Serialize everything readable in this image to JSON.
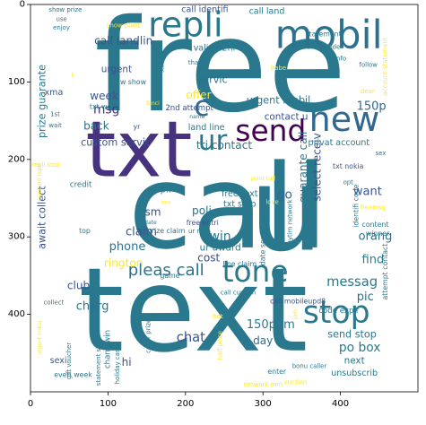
{
  "chart_data": {
    "type": "wordcloud",
    "xlim": [
      0,
      500
    ],
    "ylim": [
      500,
      0
    ],
    "x_ticks": [
      0,
      100,
      200,
      300,
      400
    ],
    "y_ticks": [
      0,
      100,
      200,
      300,
      400
    ],
    "grid": false,
    "colormap": "viridis",
    "words": [
      {
        "text": "call",
        "x": 255,
        "y": 262,
        "size": 150,
        "rotate": 0,
        "color": "#2a788e"
      },
      {
        "text": "free",
        "x": 245,
        "y": 80,
        "size": 165,
        "rotate": 0,
        "color": "#2a788e"
      },
      {
        "text": "text",
        "x": 210,
        "y": 395,
        "size": 150,
        "rotate": 0,
        "color": "#2a788e"
      },
      {
        "text": "txt",
        "x": 140,
        "y": 188,
        "size": 100,
        "rotate": 0,
        "color": "#46327e"
      },
      {
        "text": "u",
        "x": 330,
        "y": 265,
        "size": 150,
        "rotate": 0,
        "color": "#2a788e"
      },
      {
        "text": "mobil",
        "x": 385,
        "y": 40,
        "size": 50,
        "rotate": 0,
        "color": "#2c728e"
      },
      {
        "text": "repli",
        "x": 200,
        "y": 26,
        "size": 44,
        "rotate": 0,
        "color": "#2a788e"
      },
      {
        "text": "send",
        "x": 310,
        "y": 163,
        "size": 38,
        "rotate": 0,
        "color": "#440154"
      },
      {
        "text": "new",
        "x": 405,
        "y": 148,
        "size": 44,
        "rotate": 0,
        "color": "#31688e"
      },
      {
        "text": "tone",
        "x": 290,
        "y": 345,
        "size": 38,
        "rotate": 0,
        "color": "#2a788e"
      },
      {
        "text": "stop",
        "x": 395,
        "y": 398,
        "size": 40,
        "rotate": 0,
        "color": "#2a788e"
      },
      {
        "text": "ur",
        "x": 235,
        "y": 176,
        "size": 36,
        "rotate": 0,
        "color": "#2a788e"
      },
      {
        "text": "c",
        "x": 221,
        "y": 132,
        "size": 36,
        "rotate": 0,
        "color": "#31688e"
      },
      {
        "text": "pleas call",
        "x": 175,
        "y": 343,
        "size": 21,
        "rotate": 0,
        "color": "#2c728e"
      },
      {
        "text": "call landlin",
        "x": 120,
        "y": 47,
        "size": 14,
        "rotate": 0,
        "color": "#39568c"
      },
      {
        "text": "urgent",
        "x": 111,
        "y": 84,
        "size": 12,
        "rotate": 0,
        "color": "#3b528b"
      },
      {
        "text": "week",
        "x": 95,
        "y": 118,
        "size": 14,
        "rotate": 0,
        "color": "#39568c"
      },
      {
        "text": "msg",
        "x": 98,
        "y": 136,
        "size": 16,
        "rotate": 0,
        "color": "#46327e"
      },
      {
        "text": "back",
        "x": 85,
        "y": 157,
        "size": 14,
        "rotate": 0,
        "color": "#2d708e"
      },
      {
        "text": "custom servic",
        "x": 110,
        "y": 178,
        "size": 13,
        "rotate": 0,
        "color": "#3b528b"
      },
      {
        "text": "tri contact",
        "x": 250,
        "y": 182,
        "size": 14,
        "rotate": 0,
        "color": "#2a788e"
      },
      {
        "text": "servic",
        "x": 235,
        "y": 97,
        "size": 13,
        "rotate": 0,
        "color": "#2c728e"
      },
      {
        "text": "offer",
        "x": 217,
        "y": 117,
        "size": 14,
        "rotate": 0,
        "color": "#fde725"
      },
      {
        "text": "urgent mobil",
        "x": 320,
        "y": 124,
        "size": 13,
        "rotate": 0,
        "color": "#2a788e"
      },
      {
        "text": "contact u",
        "x": 330,
        "y": 145,
        "size": 12,
        "rotate": 0,
        "color": "#3b528b"
      },
      {
        "text": "150p",
        "x": 440,
        "y": 132,
        "size": 15,
        "rotate": 0,
        "color": "#31688e"
      },
      {
        "text": "land line",
        "x": 227,
        "y": 159,
        "size": 11,
        "rotate": 0,
        "color": "#2a788e"
      },
      {
        "text": "want",
        "x": 435,
        "y": 242,
        "size": 15,
        "rotate": 0,
        "color": "#3b528b"
      },
      {
        "text": "go",
        "x": 328,
        "y": 246,
        "size": 16,
        "rotate": 0,
        "color": "#31688e"
      },
      {
        "text": "free text",
        "x": 270,
        "y": 245,
        "size": 11,
        "rotate": 0,
        "color": "#2a788e"
      },
      {
        "text": "txt stop",
        "x": 270,
        "y": 258,
        "size": 11,
        "rotate": 0,
        "color": "#2a788e"
      },
      {
        "text": "poli",
        "x": 221,
        "y": 266,
        "size": 14,
        "rotate": 0,
        "color": "#2c728e"
      },
      {
        "text": "sm",
        "x": 158,
        "y": 268,
        "size": 14,
        "rotate": 0,
        "color": "#3b528b"
      },
      {
        "text": "claim",
        "x": 143,
        "y": 294,
        "size": 15,
        "rotate": 0,
        "color": "#3b528b"
      },
      {
        "text": "win",
        "x": 245,
        "y": 300,
        "size": 16,
        "rotate": 0,
        "color": "#2a788e"
      },
      {
        "text": "orang",
        "x": 445,
        "y": 300,
        "size": 15,
        "rotate": 0,
        "color": "#2c728e"
      },
      {
        "text": "phone",
        "x": 125,
        "y": 313,
        "size": 15,
        "rotate": 0,
        "color": "#2c728e"
      },
      {
        "text": "ur award",
        "x": 245,
        "y": 314,
        "size": 12,
        "rotate": 0,
        "color": "#2a788e"
      },
      {
        "text": "cost",
        "x": 230,
        "y": 327,
        "size": 14,
        "rotate": 0,
        "color": "#3b528b"
      },
      {
        "text": "find",
        "x": 442,
        "y": 330,
        "size": 15,
        "rotate": 0,
        "color": "#2a788e"
      },
      {
        "text": "rington",
        "x": 120,
        "y": 334,
        "size": 14,
        "rotate": 0,
        "color": "#fde725"
      },
      {
        "text": "messag",
        "x": 415,
        "y": 358,
        "size": 17,
        "rotate": 0,
        "color": "#2a788e"
      },
      {
        "text": "club",
        "x": 62,
        "y": 363,
        "size": 14,
        "rotate": 0,
        "color": "#3b528b"
      },
      {
        "text": "pic",
        "x": 432,
        "y": 378,
        "size": 15,
        "rotate": 0,
        "color": "#2c728e"
      },
      {
        "text": "charg",
        "x": 80,
        "y": 390,
        "size": 15,
        "rotate": 0,
        "color": "#2c728e"
      },
      {
        "text": "150ppm",
        "x": 310,
        "y": 414,
        "size": 15,
        "rotate": 0,
        "color": "#2a788e"
      },
      {
        "text": "send stop",
        "x": 415,
        "y": 426,
        "size": 13,
        "rotate": 0,
        "color": "#2a788e"
      },
      {
        "text": "po box",
        "x": 425,
        "y": 443,
        "size": 16,
        "rotate": 0,
        "color": "#2a788e"
      },
      {
        "text": "chat",
        "x": 207,
        "y": 430,
        "size": 17,
        "rotate": 0,
        "color": "#3b528b"
      },
      {
        "text": "day",
        "x": 300,
        "y": 434,
        "size": 14,
        "rotate": 0,
        "color": "#2c728e"
      },
      {
        "text": "hi",
        "x": 124,
        "y": 462,
        "size": 14,
        "rotate": 0,
        "color": "#3b528b"
      },
      {
        "text": "next",
        "x": 418,
        "y": 460,
        "size": 12,
        "rotate": 0,
        "color": "#2a788e"
      },
      {
        "text": "unsubscrib",
        "x": 418,
        "y": 476,
        "size": 11,
        "rotate": 0,
        "color": "#2a788e"
      },
      {
        "text": "sexi",
        "x": 36,
        "y": 460,
        "size": 11,
        "rotate": 0,
        "color": "#3b528b"
      },
      {
        "text": "everi week",
        "x": 55,
        "y": 478,
        "size": 9,
        "rotate": 0,
        "color": "#2a788e"
      },
      {
        "text": "network mm",
        "x": 300,
        "y": 491,
        "size": 8,
        "rotate": 0,
        "color": "#fde725"
      },
      {
        "text": "code expir",
        "x": 398,
        "y": 396,
        "size": 10,
        "rotate": 0,
        "color": "#2a788e"
      },
      {
        "text": "select receiv",
        "x": 370,
        "y": 210,
        "size": 14,
        "rotate": 270,
        "color": "#3b528b"
      },
      {
        "text": "guarante call",
        "x": 352,
        "y": 210,
        "size": 14,
        "rotate": 270,
        "color": "#2a788e"
      },
      {
        "text": "await collect",
        "x": 15,
        "y": 275,
        "size": 13,
        "rotate": 270,
        "color": "#3b528b"
      },
      {
        "text": "prize guarante",
        "x": 15,
        "y": 125,
        "size": 13,
        "rotate": 270,
        "color": "#2a788e"
      },
      {
        "text": "call identifi",
        "x": 225,
        "y": 7,
        "size": 11,
        "rotate": 0,
        "color": "#3b528b"
      },
      {
        "text": "call land",
        "x": 305,
        "y": 9,
        "size": 11,
        "rotate": 0,
        "color": "#2a788e"
      },
      {
        "text": "show prize",
        "x": 45,
        "y": 7,
        "size": 8,
        "rotate": 0,
        "color": "#2a788e"
      },
      {
        "text": "valid 12hr",
        "x": 238,
        "y": 57,
        "size": 11,
        "rotate": 0,
        "color": "#2a788e"
      },
      {
        "text": "2nd attempt",
        "x": 205,
        "y": 134,
        "size": 10,
        "rotate": 0,
        "color": "#3b528b"
      },
      {
        "text": "privat account",
        "x": 398,
        "y": 179,
        "size": 11,
        "rotate": 0,
        "color": "#2a788e"
      },
      {
        "text": "txt nokia",
        "x": 410,
        "y": 209,
        "size": 9,
        "rotate": 0,
        "color": "#3b528b"
      },
      {
        "text": "free entri",
        "x": 222,
        "y": 282,
        "size": 9,
        "rotate": 0,
        "color": "#3b528b"
      },
      {
        "text": "call mobileupd8",
        "x": 345,
        "y": 383,
        "size": 9,
        "rotate": 0,
        "color": "#3b528b"
      },
      {
        "text": "statement",
        "x": 378,
        "y": 38,
        "size": 9,
        "rotate": 0,
        "color": "#2a788e"
      },
      {
        "text": "claim code",
        "x": 378,
        "y": 55,
        "size": 8,
        "rotate": 0,
        "color": "#2a788e"
      },
      {
        "text": "xma",
        "x": 30,
        "y": 114,
        "size": 11,
        "rotate": 0,
        "color": "#3b528b"
      },
      {
        "text": "draw show",
        "x": 125,
        "y": 100,
        "size": 9,
        "rotate": 0,
        "color": "#2a788e"
      },
      {
        "text": "txt word",
        "x": 95,
        "y": 132,
        "size": 9,
        "rotate": 0,
        "color": "#2a788e"
      },
      {
        "text": "credit",
        "x": 65,
        "y": 233,
        "size": 10,
        "rotate": 0,
        "color": "#2a788e"
      },
      {
        "text": "repli stop",
        "x": 20,
        "y": 207,
        "size": 8,
        "rotate": 0,
        "color": "#fde725"
      },
      {
        "text": "appli",
        "x": 167,
        "y": 239,
        "size": 12,
        "rotate": 0,
        "color": "#2a788e"
      },
      {
        "text": "top",
        "x": 70,
        "y": 292,
        "size": 9,
        "rotate": 0,
        "color": "#2a788e"
      },
      {
        "text": "prize claim",
        "x": 175,
        "y": 292,
        "size": 9,
        "rotate": 0,
        "color": "#2a788e"
      },
      {
        "text": "game",
        "x": 180,
        "y": 350,
        "size": 9,
        "rotate": 0,
        "color": "#2a788e"
      },
      {
        "text": "freemsg",
        "x": 442,
        "y": 262,
        "size": 8,
        "rotate": 0,
        "color": "#fde725"
      },
      {
        "text": "content",
        "x": 445,
        "y": 284,
        "size": 9,
        "rotate": 0,
        "color": "#2a788e"
      },
      {
        "text": "winner",
        "x": 448,
        "y": 296,
        "size": 9,
        "rotate": 0,
        "color": "#2a788e"
      },
      {
        "text": "line claim",
        "x": 270,
        "y": 335,
        "size": 9,
        "rotate": 0,
        "color": "#2a788e"
      },
      {
        "text": "call custom",
        "x": 268,
        "y": 372,
        "size": 8,
        "rotate": 0,
        "color": "#2a788e"
      },
      {
        "text": "collect",
        "x": 30,
        "y": 385,
        "size": 8,
        "rotate": 0,
        "color": "#2a788e"
      },
      {
        "text": "enter",
        "x": 318,
        "y": 474,
        "size": 9,
        "rotate": 0,
        "color": "#2a788e"
      },
      {
        "text": "bonu caller",
        "x": 360,
        "y": 467,
        "size": 8,
        "rotate": 0,
        "color": "#2a788e"
      },
      {
        "text": "auction",
        "x": 342,
        "y": 488,
        "size": 8,
        "rotate": 0,
        "color": "#fde725"
      },
      {
        "text": "account statement",
        "x": 458,
        "y": 80,
        "size": 8,
        "rotate": 270,
        "color": "#fde725"
      },
      {
        "text": "attempt contact",
        "x": 458,
        "y": 345,
        "size": 9,
        "rotate": 270,
        "color": "#2a788e"
      },
      {
        "text": "caller prize",
        "x": 152,
        "y": 428,
        "size": 8,
        "rotate": 270,
        "color": "#2a788e"
      },
      {
        "text": "date servic",
        "x": 300,
        "y": 312,
        "size": 9,
        "rotate": 270,
        "color": "#2a788e"
      },
      {
        "text": "identifi code",
        "x": 420,
        "y": 260,
        "size": 9,
        "rotate": 270,
        "color": "#2a788e"
      },
      {
        "text": "anytim network",
        "x": 335,
        "y": 283,
        "size": 8,
        "rotate": 270,
        "color": "#2a788e"
      },
      {
        "text": "statement show",
        "x": 88,
        "y": 460,
        "size": 8,
        "rotate": 270,
        "color": "#2a788e"
      },
      {
        "text": "holiday cash",
        "x": 112,
        "y": 465,
        "size": 8,
        "rotate": 270,
        "color": "#2a788e"
      },
      {
        "text": "chanc win",
        "x": 100,
        "y": 445,
        "size": 10,
        "rotate": 270,
        "color": "#2a788e"
      },
      {
        "text": "half price",
        "x": 245,
        "y": 440,
        "size": 8,
        "rotate": 270,
        "color": "#fde725"
      },
      {
        "text": "gift voucher",
        "x": 50,
        "y": 460,
        "size": 8,
        "rotate": 270,
        "color": "#2a788e"
      },
      {
        "text": "urgent nokia",
        "x": 12,
        "y": 430,
        "size": 7,
        "rotate": 270,
        "color": "#fde725"
      },
      {
        "text": "camcord repli",
        "x": 12,
        "y": 230,
        "size": 7,
        "rotate": 270,
        "color": "#fde725"
      },
      {
        "text": "show point",
        "x": 120,
        "y": 27,
        "size": 8,
        "rotate": 0,
        "color": "#fde725"
      },
      {
        "text": "enjoy",
        "x": 40,
        "y": 30,
        "size": 8,
        "rotate": 0,
        "color": "#2a788e"
      },
      {
        "text": "thank",
        "x": 215,
        "y": 75,
        "size": 8,
        "rotate": 0,
        "color": "#2a788e"
      },
      {
        "text": "babe",
        "x": 320,
        "y": 82,
        "size": 8,
        "rotate": 0,
        "color": "#fde725"
      },
      {
        "text": "info",
        "x": 400,
        "y": 70,
        "size": 8,
        "rotate": 0,
        "color": "#2a788e"
      },
      {
        "text": "follow",
        "x": 436,
        "y": 78,
        "size": 8,
        "rotate": 0,
        "color": "#2a788e"
      },
      {
        "text": "dear",
        "x": 435,
        "y": 112,
        "size": 8,
        "rotate": 0,
        "color": "#fde725"
      },
      {
        "text": "1st",
        "x": 32,
        "y": 142,
        "size": 8,
        "rotate": 0,
        "color": "#2a788e"
      },
      {
        "text": "wait",
        "x": 32,
        "y": 156,
        "size": 8,
        "rotate": 0,
        "color": "#2a788e"
      },
      {
        "text": "yr",
        "x": 137,
        "y": 158,
        "size": 9,
        "rotate": 0,
        "color": "#3b528b"
      },
      {
        "text": "fanci",
        "x": 158,
        "y": 128,
        "size": 7,
        "rotate": 0,
        "color": "#fde725"
      },
      {
        "text": "name",
        "x": 215,
        "y": 145,
        "size": 7,
        "rotate": 0,
        "color": "#2a788e"
      },
      {
        "text": "sex",
        "x": 452,
        "y": 192,
        "size": 8,
        "rotate": 0,
        "color": "#2a788e"
      },
      {
        "text": "opt",
        "x": 410,
        "y": 230,
        "size": 8,
        "rotate": 0,
        "color": "#2a788e"
      },
      {
        "text": "love",
        "x": 312,
        "y": 255,
        "size": 8,
        "rotate": 0,
        "color": "#fde725"
      },
      {
        "text": "xxx",
        "x": 175,
        "y": 256,
        "size": 7,
        "rotate": 0,
        "color": "#fde725"
      },
      {
        "text": "date",
        "x": 155,
        "y": 282,
        "size": 7,
        "rotate": 0,
        "color": "#2a788e"
      },
      {
        "text": "ur mob",
        "x": 218,
        "y": 293,
        "size": 8,
        "rotate": 0,
        "color": "#2a788e"
      },
      {
        "text": "see",
        "x": 310,
        "y": 368,
        "size": 8,
        "rotate": 0,
        "color": "#2a788e"
      },
      {
        "text": "join",
        "x": 342,
        "y": 400,
        "size": 7,
        "rotate": 270,
        "color": "#fde725"
      },
      {
        "text": "hot",
        "x": 242,
        "y": 403,
        "size": 8,
        "rotate": 0,
        "color": "#fde725"
      },
      {
        "text": "one",
        "x": 345,
        "y": 443,
        "size": 8,
        "rotate": 0,
        "color": "#2a788e"
      },
      {
        "text": "use",
        "x": 40,
        "y": 19,
        "size": 8,
        "rotate": 0,
        "color": "#2a788e"
      },
      {
        "text": "b",
        "x": 55,
        "y": 92,
        "size": 7,
        "rotate": 0,
        "color": "#fde725"
      },
      {
        "text": "point call",
        "x": 300,
        "y": 225,
        "size": 7,
        "rotate": 0,
        "color": "#fde725"
      },
      {
        "text": "start",
        "x": 170,
        "y": 80,
        "size": 7,
        "rotate": 270,
        "color": "#2a788e"
      }
    ]
  },
  "axes": {
    "x_tick_labels": [
      "0",
      "100",
      "200",
      "300",
      "400"
    ],
    "y_tick_labels": [
      "0",
      "100",
      "200",
      "300",
      "400"
    ]
  }
}
